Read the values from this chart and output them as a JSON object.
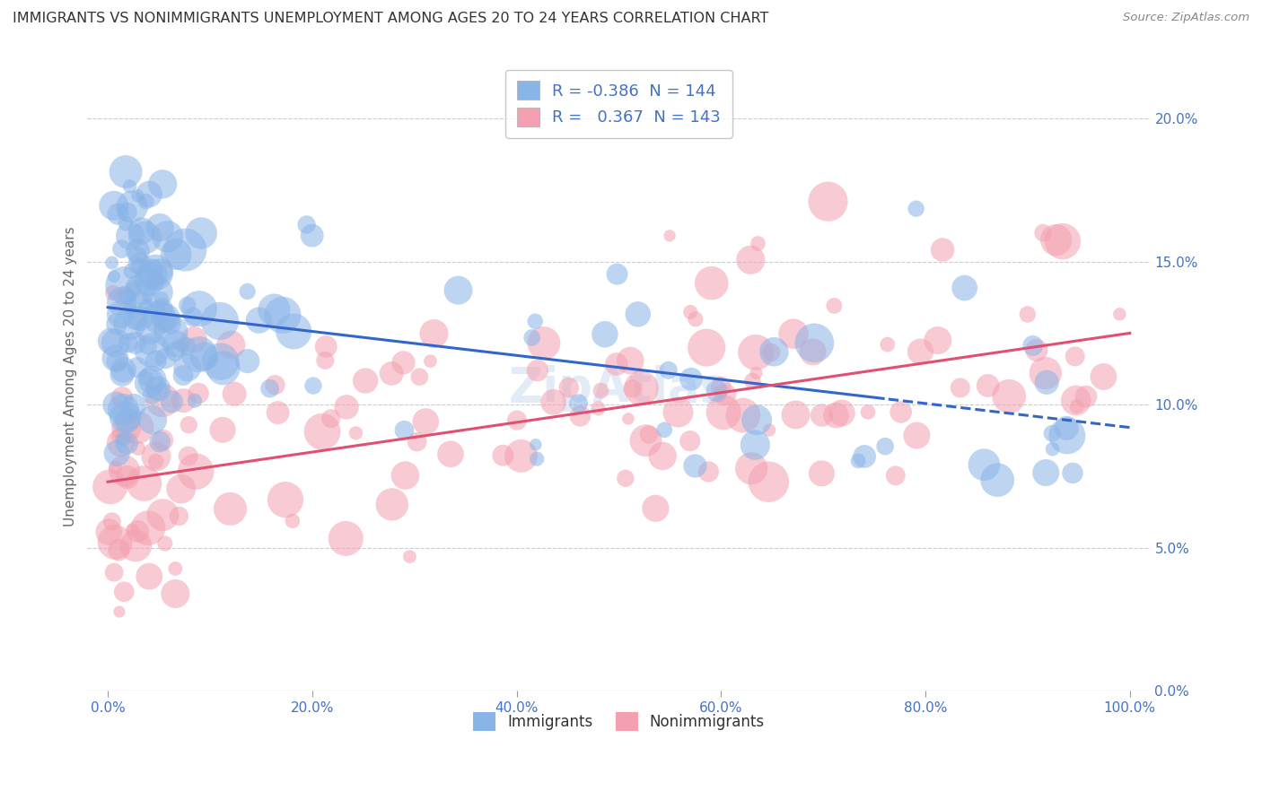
{
  "title": "IMMIGRANTS VS NONIMMIGRANTS UNEMPLOYMENT AMONG AGES 20 TO 24 YEARS CORRELATION CHART",
  "source": "Source: ZipAtlas.com",
  "ylabel": "Unemployment Among Ages 20 to 24 years",
  "r_immigrants": -0.386,
  "n_immigrants": 144,
  "r_nonimmigrants": 0.367,
  "n_nonimmigrants": 143,
  "color_immigrants": "#89b4e8",
  "color_nonimmigrants": "#f4a0b0",
  "trendline_immigrants": "#3366cc",
  "trendline_nonimmigrants": "#e05070",
  "background_color": "#ffffff",
  "grid_color": "#cccccc",
  "axis_label_color": "#4472c4",
  "title_color": "#333333",
  "xlim": [
    -0.02,
    1.02
  ],
  "ylim": [
    0.0,
    0.22
  ],
  "x_ticks": [
    0.0,
    0.2,
    0.4,
    0.6,
    0.8,
    1.0
  ],
  "x_tick_labels": [
    "0.0%",
    "20.0%",
    "40.0%",
    "60.0%",
    "80.0%",
    "100.0%"
  ],
  "y_ticks": [
    0.0,
    0.05,
    0.1,
    0.15,
    0.2
  ],
  "y_tick_labels": [
    "0.0%",
    "5.0%",
    "10.0%",
    "15.0%",
    "20.0%"
  ],
  "seed": 42,
  "watermark": "ZipAtlas",
  "slope_imm": -0.042,
  "intercept_imm": 0.134,
  "slope_non": 0.052,
  "intercept_non": 0.073,
  "dashed_cutoff": 0.76
}
